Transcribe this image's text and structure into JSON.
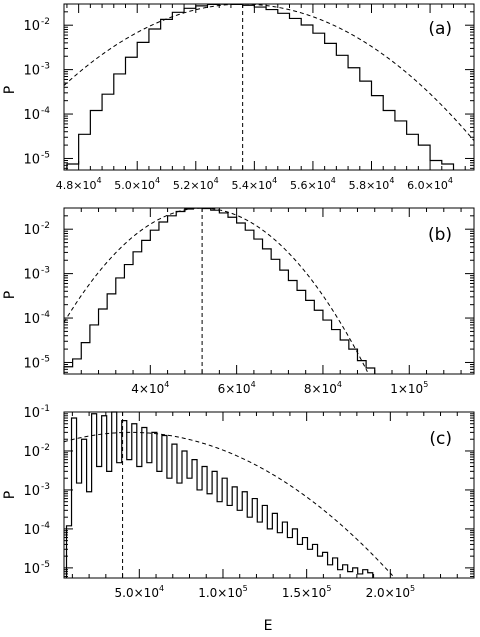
{
  "chart_data": [
    {
      "panel_label": "(a)",
      "type": "line",
      "xscale": "linear",
      "yscale": "log",
      "xlim": [
        47500,
        61500
      ],
      "ylim": [
        5.5e-06,
        0.03
      ],
      "xlabel": "",
      "ylabel": "P",
      "x_ticks": [
        {
          "value": 48000,
          "mant": "4.8",
          "exp": "4"
        },
        {
          "value": 50000,
          "mant": "5.0",
          "exp": "4"
        },
        {
          "value": 52000,
          "mant": "5.2",
          "exp": "4"
        },
        {
          "value": 54000,
          "mant": "5.4",
          "exp": "4"
        },
        {
          "value": 56000,
          "mant": "5.6",
          "exp": "4"
        },
        {
          "value": 58000,
          "mant": "5.8",
          "exp": "4"
        },
        {
          "value": 60000,
          "mant": "6.0",
          "exp": "4"
        }
      ],
      "y_ticks": [
        {
          "value": 1e-05,
          "exp": "-5"
        },
        {
          "value": 0.0001,
          "exp": "-4"
        },
        {
          "value": 0.001,
          "exp": "-3"
        },
        {
          "value": 0.01,
          "exp": "-2"
        }
      ],
      "vline": 53600,
      "histogram": {
        "x": [
          47800,
          48200,
          48600,
          49000,
          49400,
          49800,
          50200,
          50600,
          51000,
          51400,
          51800,
          52200,
          52600,
          53000,
          53400,
          53800,
          54200,
          54600,
          55000,
          55400,
          55800,
          56200,
          56600,
          57000,
          57400,
          57800,
          58200,
          58600,
          59000,
          59400,
          59800,
          60200,
          60600
        ],
        "y": [
          7.5e-06,
          3.5e-05,
          0.00012,
          0.00028,
          0.0008,
          0.0019,
          0.0041,
          0.0082,
          0.0135,
          0.0195,
          0.024,
          0.0272,
          0.0293,
          0.0298,
          0.0294,
          0.028,
          0.0256,
          0.0225,
          0.0185,
          0.0142,
          0.0101,
          0.0066,
          0.0039,
          0.0021,
          0.0011,
          0.00055,
          0.00026,
          0.00012,
          7e-05,
          3.5e-05,
          2e-05,
          9e-06,
          7.5e-06
        ]
      },
      "gaussian": {
        "mean": 53600,
        "sigma": 2100,
        "peak": 0.0298
      }
    },
    {
      "panel_label": "(b)",
      "type": "line",
      "xscale": "linear",
      "yscale": "log",
      "xlim": [
        20000,
        115000
      ],
      "ylim": [
        5.5e-06,
        0.03
      ],
      "xlabel": "",
      "ylabel": "P",
      "x_ticks": [
        {
          "value": 40000,
          "mant": "4",
          "exp": "4"
        },
        {
          "value": 60000,
          "mant": "6",
          "exp": "4"
        },
        {
          "value": 80000,
          "mant": "8",
          "exp": "4"
        },
        {
          "value": 100000,
          "mant": "1",
          "exp": "5"
        }
      ],
      "y_ticks": [
        {
          "value": 1e-05,
          "exp": "-5"
        },
        {
          "value": 0.0001,
          "exp": "-4"
        },
        {
          "value": 0.001,
          "exp": "-3"
        },
        {
          "value": 0.01,
          "exp": "-2"
        }
      ],
      "vline": 52000,
      "histogram": {
        "x": [
          21000,
          23000,
          25000,
          27000,
          29000,
          31000,
          33000,
          35000,
          37000,
          39000,
          41000,
          43000,
          45000,
          47000,
          49000,
          51000,
          53000,
          55000,
          57000,
          59000,
          61000,
          63000,
          65000,
          67000,
          69000,
          71000,
          73000,
          75000,
          77000,
          79000,
          81000,
          83000,
          85000,
          87000,
          89000,
          91000
        ],
        "y": [
          8e-06,
          1.2e-05,
          2.8e-05,
          7e-05,
          0.00016,
          0.00035,
          0.0008,
          0.0016,
          0.0031,
          0.0056,
          0.0095,
          0.0145,
          0.02,
          0.025,
          0.0285,
          0.0298,
          0.0292,
          0.0268,
          0.0232,
          0.0186,
          0.0138,
          0.0095,
          0.006,
          0.0036,
          0.0021,
          0.0012,
          0.0007,
          0.00042,
          0.00025,
          0.00015,
          9e-05,
          5.5e-05,
          3.2e-05,
          2e-05,
          1.1e-05,
          7.5e-06
        ]
      },
      "gaussian": {
        "mean": 52000,
        "sigma": 9300,
        "peak": 0.0298
      }
    },
    {
      "panel_label": "(c)",
      "type": "line",
      "xscale": "linear",
      "yscale": "log",
      "xlim": [
        5000,
        250000
      ],
      "ylim": [
        5.5e-06,
        0.1
      ],
      "xlabel": "E",
      "ylabel": "P",
      "x_ticks": [
        {
          "value": 50000,
          "mant": "5.0",
          "exp": "4"
        },
        {
          "value": 100000,
          "mant": "1.0",
          "exp": "5"
        },
        {
          "value": 150000,
          "mant": "1.5",
          "exp": "5"
        },
        {
          "value": 200000,
          "mant": "2.0",
          "exp": "5"
        }
      ],
      "y_ticks": [
        {
          "value": 1e-05,
          "exp": "-5"
        },
        {
          "value": 0.0001,
          "exp": "-4"
        },
        {
          "value": 0.001,
          "exp": "-3"
        },
        {
          "value": 0.01,
          "exp": "-2"
        },
        {
          "value": 0.1,
          "exp": "-1"
        }
      ],
      "vline": 40000,
      "histogram": {
        "x": [
          8000,
          11000,
          14000,
          17000,
          20000,
          23000,
          26000,
          29000,
          32000,
          35000,
          38000,
          41000,
          44000,
          47000,
          50000,
          53000,
          56000,
          59000,
          62000,
          65000,
          68000,
          71000,
          74000,
          77000,
          80000,
          83000,
          86000,
          89000,
          92000,
          95000,
          98000,
          101000,
          104000,
          107000,
          110000,
          113000,
          116000,
          119000,
          122000,
          125000,
          128000,
          131000,
          134000,
          137000,
          140000,
          143000,
          146000,
          149000,
          152000,
          155000,
          158000,
          161000,
          164000,
          167000,
          170000,
          173000,
          176000,
          179000,
          182000,
          185000,
          188000
        ],
        "y": [
          0.00012,
          0.07,
          0.0015,
          0.02,
          0.0009,
          0.09,
          0.004,
          0.08,
          0.003,
          0.1,
          0.005,
          0.06,
          0.006,
          0.05,
          0.004,
          0.04,
          0.005,
          0.03,
          0.003,
          0.025,
          0.002,
          0.015,
          0.0015,
          0.01,
          0.002,
          0.006,
          0.001,
          0.004,
          0.0008,
          0.003,
          0.0005,
          0.002,
          0.0004,
          0.0012,
          0.0003,
          0.0009,
          0.0002,
          0.0006,
          0.00015,
          0.0004,
          0.0001,
          0.00025,
          8e-05,
          0.00015,
          6e-05,
          0.0001,
          4e-05,
          6e-05,
          3e-05,
          4e-05,
          2e-05,
          2.5e-05,
          1.2e-05,
          1.8e-05,
          9e-06,
          1.2e-05,
          8e-06,
          1e-05,
          7e-06,
          9e-06,
          7.5e-06
        ]
      },
      "gaussian": {
        "mean": 45000,
        "sigma": 38000,
        "peak": 0.03
      }
    }
  ]
}
